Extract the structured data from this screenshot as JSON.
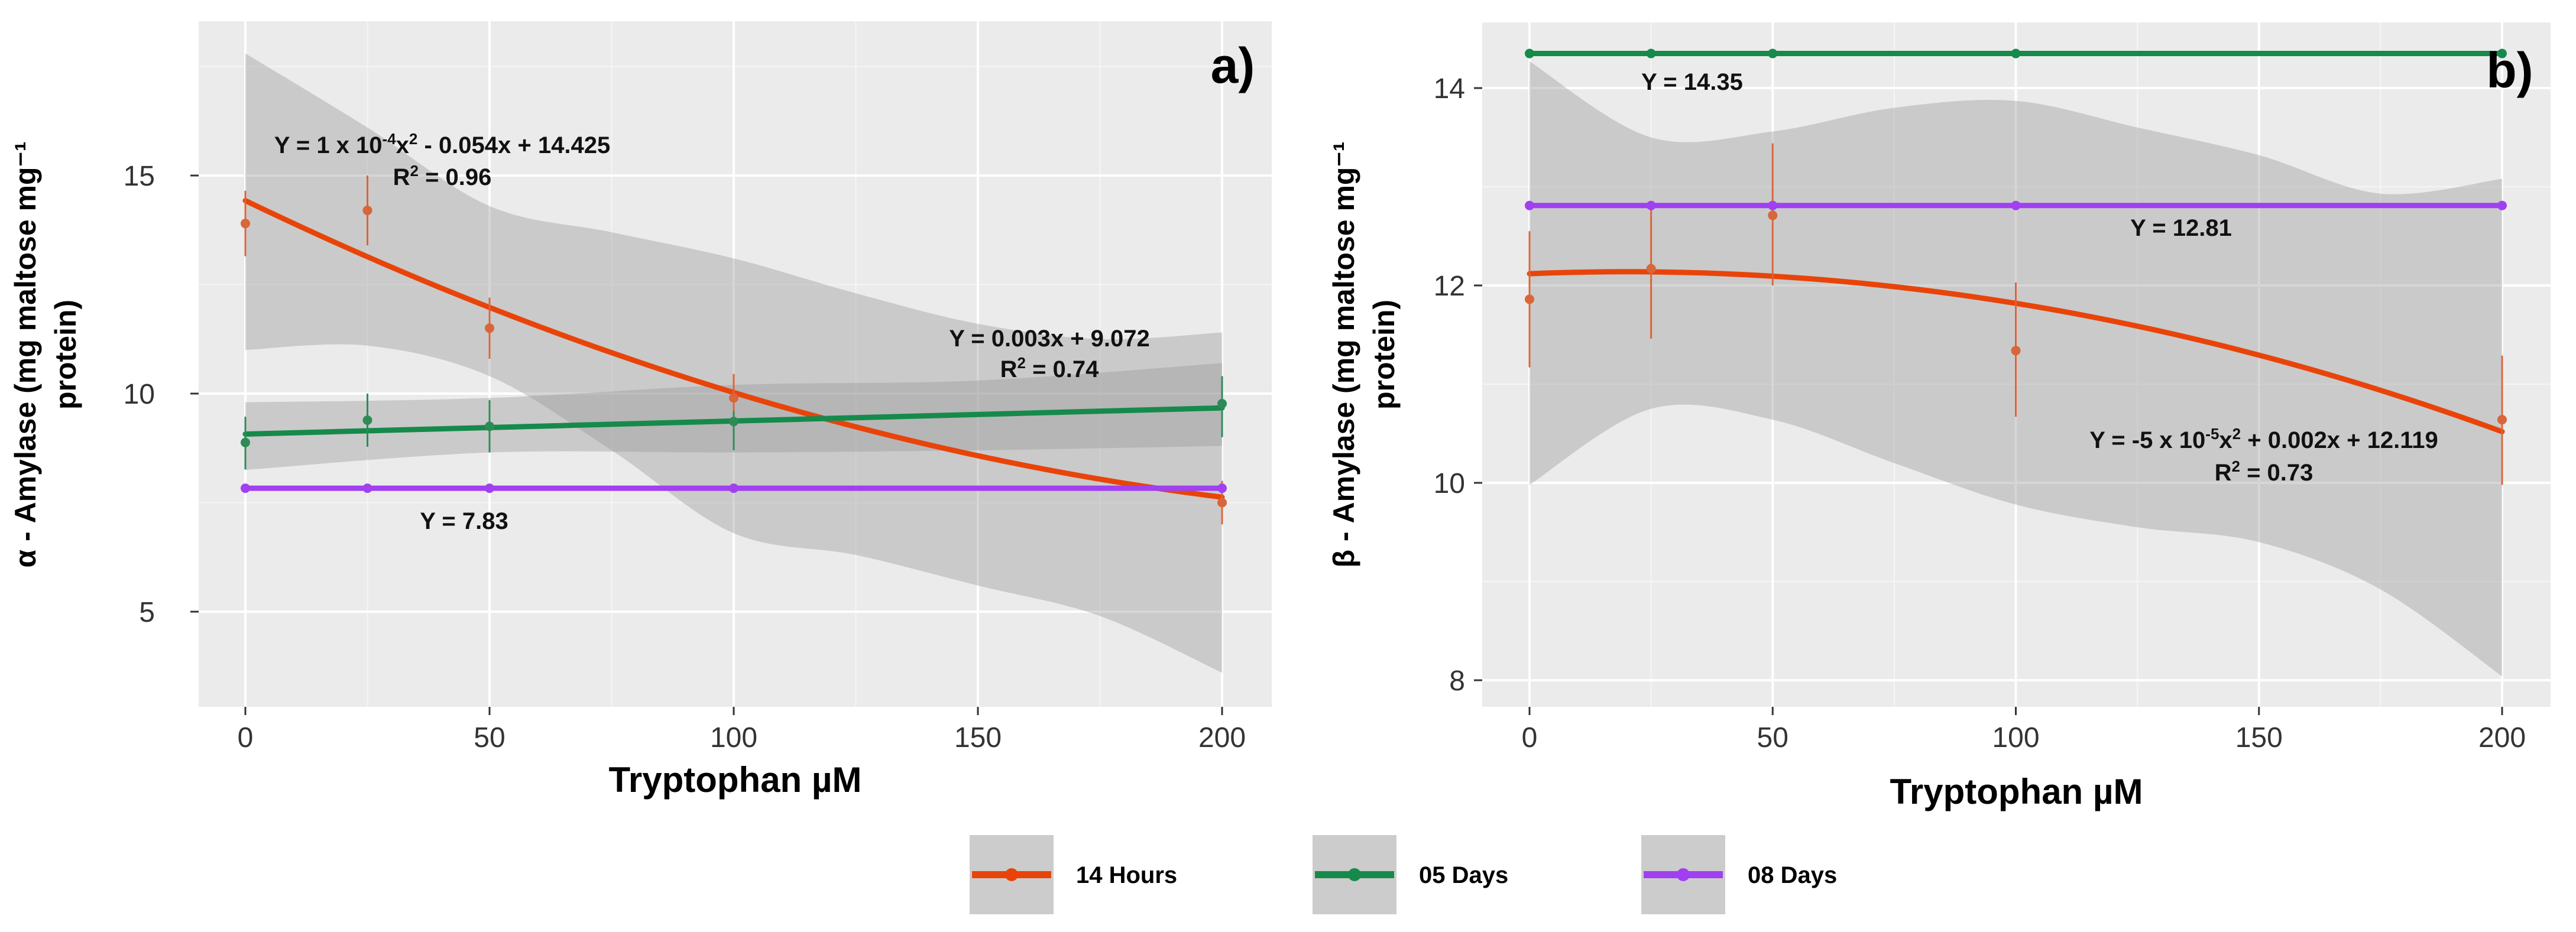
{
  "chart_data": [
    {
      "type": "line",
      "panel_label": "a)",
      "xlabel": "Tryptophan µM",
      "ylabel_lines": [
        "α - Amylase (mg maltose mg⁻¹",
        "protein)"
      ],
      "xlim": [
        -10,
        210
      ],
      "ylim": [
        2.85,
        18.5
      ],
      "xticks": [
        0,
        50,
        100,
        150,
        200
      ],
      "yticks": [
        5,
        10,
        15
      ],
      "grid": true,
      "series": [
        {
          "name": "14 Hours",
          "color": "#E8440A",
          "point_color": "#D9653A",
          "points": [
            {
              "x": 0,
              "y": 13.9,
              "ymin": 13.15,
              "ymax": 14.65
            },
            {
              "x": 25,
              "y": 14.2,
              "ymin": 13.4,
              "ymax": 15.0
            },
            {
              "x": 50,
              "y": 11.5,
              "ymin": 10.8,
              "ymax": 12.2
            },
            {
              "x": 100,
              "y": 9.9,
              "ymin": 9.5,
              "ymax": 10.45
            },
            {
              "x": 200,
              "y": 7.5,
              "ymin": 7.0,
              "ymax": 8.0
            }
          ],
          "fit": {
            "c": 14.425,
            "b": -0.054,
            "a": 0.0001
          },
          "band": {
            "x": [
              0,
              25,
              50,
              75,
              100,
              125,
              150,
              175,
              200
            ],
            "upper": [
              17.8,
              16.1,
              14.3,
              13.7,
              13.1,
              12.3,
              11.6,
              11.25,
              11.4
            ],
            "lower": [
              11.0,
              11.1,
              10.4,
              8.7,
              6.8,
              6.3,
              5.6,
              4.9,
              3.6
            ]
          },
          "annotation": {
            "equation": [
              {
                "t": "Y = 1 x 10"
              },
              {
                "t": "-4",
                "sup": true
              },
              {
                "t": "x"
              },
              {
                "t": "2",
                "sup": true
              },
              {
                "t": " - 0.054x + 14.425"
              }
            ],
            "r2": [
              {
                "t": "R"
              },
              {
                "t": "2",
                "sup": true
              },
              {
                "t": " = 0.96"
              }
            ]
          }
        },
        {
          "name": "05 Days",
          "color": "#168A4B",
          "point_color": "#2E8B57",
          "points": [
            {
              "x": 0,
              "y": 8.88,
              "ymin": 8.26,
              "ymax": 9.47
            },
            {
              "x": 25,
              "y": 9.39,
              "ymin": 8.78,
              "ymax": 10.0
            },
            {
              "x": 50,
              "y": 9.25,
              "ymin": 8.65,
              "ymax": 9.85
            },
            {
              "x": 100,
              "y": 9.36,
              "ymin": 8.7,
              "ymax": 9.6
            },
            {
              "x": 200,
              "y": 9.77,
              "ymin": 9.0,
              "ymax": 10.4
            }
          ],
          "fit": {
            "c": 9.072,
            "b": 0.003,
            "a": 0
          },
          "band": {
            "x": [
              0,
              50,
              100,
              150,
              200
            ],
            "upper": [
              9.8,
              9.9,
              10.2,
              10.3,
              10.7
            ],
            "lower": [
              8.25,
              8.65,
              8.65,
              8.7,
              8.8
            ]
          },
          "annotation": {
            "equation": [
              {
                "t": "Y = 0.003x + 9.072"
              }
            ],
            "r2": [
              {
                "t": "R"
              },
              {
                "t": "2",
                "sup": true
              },
              {
                "t": " = 0.74"
              }
            ]
          }
        },
        {
          "name": "08 Days",
          "color": "#A040F0",
          "point_color": "#A040F0",
          "points": [
            {
              "x": 0,
              "y": 7.83
            },
            {
              "x": 25,
              "y": 7.83
            },
            {
              "x": 50,
              "y": 7.83
            },
            {
              "x": 100,
              "y": 7.83
            },
            {
              "x": 200,
              "y": 7.83
            }
          ],
          "fit": {
            "c": 7.83,
            "b": 0,
            "a": 0
          },
          "annotation": {
            "equation": [
              {
                "t": "Y = 7.83"
              }
            ]
          }
        }
      ]
    },
    {
      "type": "line",
      "panel_label": "b)",
      "xlabel": "Tryptophan µM",
      "ylabel_lines": [
        "β - Amylase (mg maltose mg⁻¹",
        "protein)"
      ],
      "xlim": [
        -10,
        210
      ],
      "ylim": [
        7.66,
        14.61
      ],
      "xticks": [
        0,
        50,
        100,
        150,
        200
      ],
      "yticks": [
        8,
        10,
        12,
        14
      ],
      "grid": true,
      "series": [
        {
          "name": "14 Hours",
          "color": "#E8440A",
          "point_color": "#D9653A",
          "points": [
            {
              "x": 0,
              "y": 11.86,
              "ymin": 11.17,
              "ymax": 12.55
            },
            {
              "x": 25,
              "y": 12.17,
              "ymin": 11.46,
              "ymax": 12.84
            },
            {
              "x": 50,
              "y": 12.71,
              "ymin": 12.0,
              "ymax": 13.44
            },
            {
              "x": 100,
              "y": 11.34,
              "ymin": 10.67,
              "ymax": 12.03
            },
            {
              "x": 200,
              "y": 10.64,
              "ymin": 9.98,
              "ymax": 11.29
            }
          ],
          "fit": {
            "c": 12.119,
            "b": 0.002,
            "a": -5e-05
          },
          "band": {
            "x": [
              0,
              25,
              50,
              75,
              100,
              125,
              150,
              175,
              200
            ],
            "upper": [
              14.27,
              13.5,
              13.56,
              13.8,
              13.87,
              13.6,
              13.32,
              12.93,
              13.08
            ],
            "lower": [
              9.98,
              10.75,
              10.64,
              10.2,
              9.78,
              9.55,
              9.4,
              8.92,
              8.04
            ]
          },
          "annotation": {
            "equation": [
              {
                "t": "Y = -5 x 10"
              },
              {
                "t": "-5",
                "sup": true
              },
              {
                "t": "x"
              },
              {
                "t": "2",
                "sup": true
              },
              {
                "t": " + 0.002x + 12.119"
              }
            ],
            "r2": [
              {
                "t": "R"
              },
              {
                "t": "2",
                "sup": true
              },
              {
                "t": " = 0.73"
              }
            ]
          }
        },
        {
          "name": "05 Days",
          "color": "#168A4B",
          "point_color": "#168A4B",
          "points": [
            {
              "x": 0,
              "y": 14.35
            },
            {
              "x": 25,
              "y": 14.35
            },
            {
              "x": 50,
              "y": 14.35
            },
            {
              "x": 100,
              "y": 14.35
            },
            {
              "x": 200,
              "y": 14.35
            }
          ],
          "fit": {
            "c": 14.35,
            "b": 0,
            "a": 0
          },
          "annotation": {
            "equation": [
              {
                "t": "Y = 14.35"
              }
            ]
          }
        },
        {
          "name": "08 Days",
          "color": "#A040F0",
          "point_color": "#A040F0",
          "points": [
            {
              "x": 0,
              "y": 12.81
            },
            {
              "x": 25,
              "y": 12.81
            },
            {
              "x": 50,
              "y": 12.81
            },
            {
              "x": 100,
              "y": 12.81
            },
            {
              "x": 200,
              "y": 12.81
            }
          ],
          "fit": {
            "c": 12.81,
            "b": 0,
            "a": 0
          },
          "annotation": {
            "equation": [
              {
                "t": "Y = 12.81"
              }
            ]
          }
        }
      ]
    }
  ],
  "legend": {
    "placement": "bottom",
    "items": [
      {
        "label": "14 Hours",
        "color": "#E8440A"
      },
      {
        "label": "05 Days",
        "color": "#168A4B"
      },
      {
        "label": "08 Days",
        "color": "#A040F0"
      }
    ]
  }
}
